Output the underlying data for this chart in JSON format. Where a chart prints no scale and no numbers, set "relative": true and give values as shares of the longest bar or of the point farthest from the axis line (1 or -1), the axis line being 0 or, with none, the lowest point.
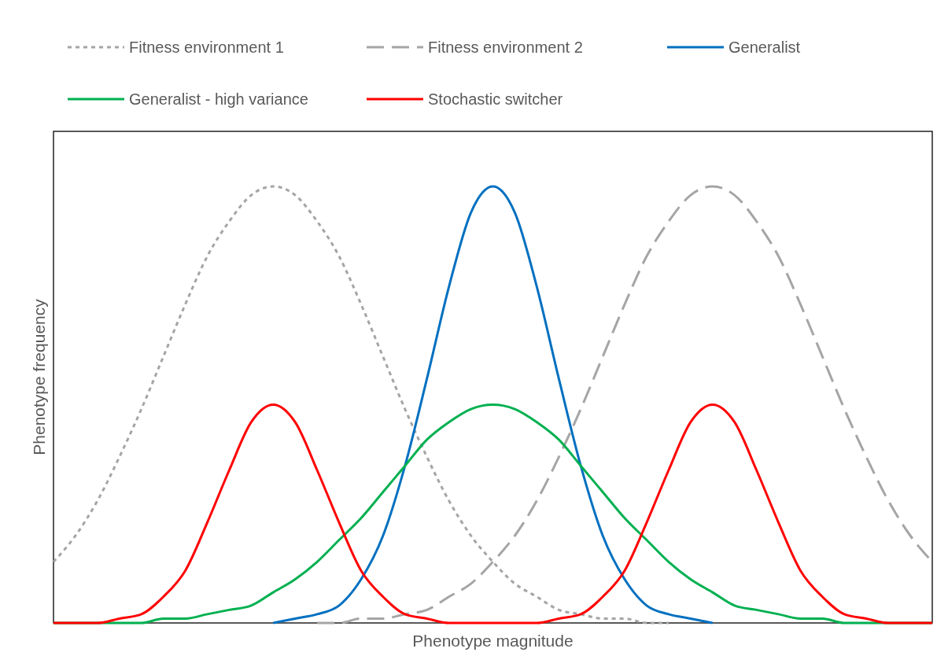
{
  "chart_data": {
    "type": "line",
    "relative": true,
    "xlabel": "Phenotype magnitude",
    "ylabel": "Phenotype frequency",
    "legend": "top",
    "categories": [
      null,
      null,
      null,
      null,
      null,
      null,
      null,
      null,
      null,
      null,
      null,
      null,
      null,
      null,
      null,
      null,
      null,
      null,
      null,
      null,
      null,
      null,
      null,
      null,
      null,
      null,
      null,
      null,
      null,
      null,
      null,
      null,
      null,
      null,
      null,
      null,
      null,
      null,
      null,
      null,
      null
    ],
    "series": [
      {
        "name": "Fitness environment 1",
        "color": "#a5a5a5",
        "line_style": "dotted",
        "values": [
          0.14,
          0.2,
          0.28,
          0.38,
          0.49,
          0.61,
          0.73,
          0.84,
          0.92,
          0.98,
          1,
          0.98,
          0.92,
          0.84,
          0.73,
          0.61,
          0.49,
          0.38,
          0.28,
          0.2,
          0.14,
          0.09,
          0.06,
          0.03,
          0.02,
          0.01,
          0.01,
          0,
          0,
          null,
          null,
          null,
          null,
          null,
          null,
          null,
          null,
          null,
          null,
          null,
          null
        ]
      },
      {
        "name": "Fitness environment 2",
        "color": "#a5a5a5",
        "line_style": "dashed",
        "values": [
          null,
          null,
          null,
          null,
          null,
          null,
          null,
          null,
          null,
          null,
          null,
          null,
          0,
          0,
          0.01,
          0.01,
          0.02,
          0.03,
          0.06,
          0.09,
          0.14,
          0.2,
          0.28,
          0.38,
          0.49,
          0.61,
          0.73,
          0.84,
          0.92,
          0.98,
          1,
          0.98,
          0.92,
          0.84,
          0.73,
          0.61,
          0.49,
          0.38,
          0.28,
          0.2,
          0.14
        ]
      },
      {
        "name": "Generalist",
        "color": "#0070c0",
        "line_style": "solid",
        "values": [
          null,
          null,
          null,
          null,
          null,
          null,
          null,
          null,
          null,
          null,
          0,
          0.01,
          0.02,
          0.04,
          0.1,
          0.2,
          0.36,
          0.56,
          0.77,
          0.94,
          1,
          0.94,
          0.77,
          0.56,
          0.36,
          0.2,
          0.1,
          0.04,
          0.02,
          0.01,
          0,
          null,
          null,
          null,
          null,
          null,
          null,
          null,
          null,
          null,
          null
        ]
      },
      {
        "name": "Generalist - high variance",
        "color": "#00b050",
        "line_style": "solid",
        "values": [
          0,
          0,
          0,
          0,
          0,
          0.01,
          0.01,
          0.02,
          0.03,
          0.04,
          0.07,
          0.1,
          0.14,
          0.19,
          0.24,
          0.3,
          0.36,
          0.42,
          0.46,
          0.49,
          0.5,
          0.49,
          0.46,
          0.42,
          0.36,
          0.3,
          0.24,
          0.19,
          0.14,
          0.1,
          0.07,
          0.04,
          0.03,
          0.02,
          0.01,
          0.01,
          0,
          0,
          0,
          0,
          0
        ]
      },
      {
        "name": "Stochastic switcher",
        "color": "#ff0000",
        "line_style": "solid",
        "values": [
          0,
          0,
          0,
          0.01,
          0.02,
          0.06,
          0.12,
          0.23,
          0.35,
          0.46,
          0.5,
          0.46,
          0.35,
          0.23,
          0.12,
          0.06,
          0.02,
          0.01,
          0,
          0,
          0,
          0,
          0,
          0.01,
          0.02,
          0.06,
          0.12,
          0.23,
          0.35,
          0.46,
          0.5,
          0.46,
          0.35,
          0.23,
          0.12,
          0.06,
          0.02,
          0.01,
          0,
          0,
          0
        ]
      }
    ]
  }
}
